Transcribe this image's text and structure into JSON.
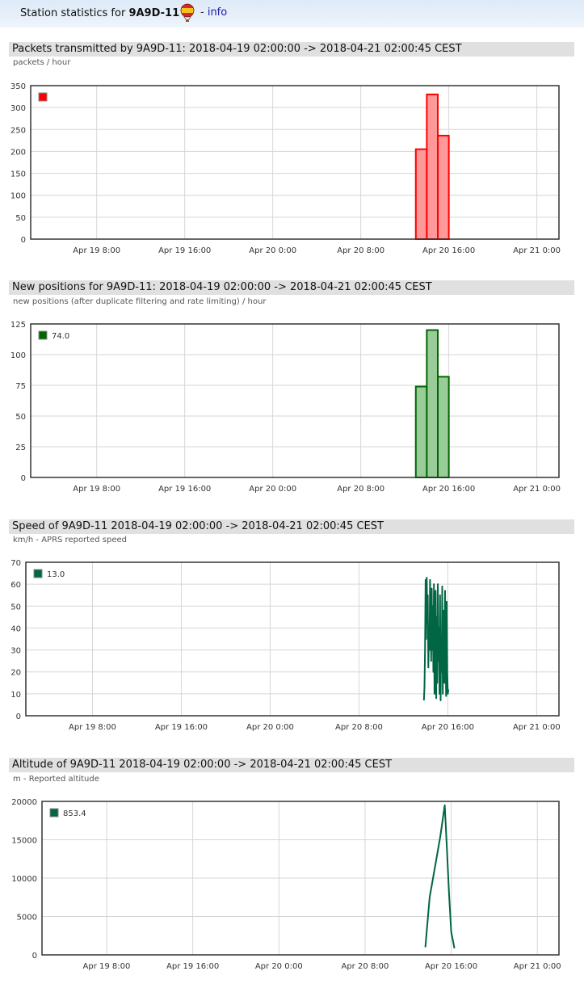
{
  "header": {
    "prefix": "Station statistics for",
    "callsign": "9A9D-11",
    "info_sep": " - ",
    "info_link": "info",
    "icon": "balloon-icon"
  },
  "chart_data": [
    {
      "type": "bar",
      "title": "Packets transmitted by 9A9D-11: 2018-04-19 02:00:00 -> 2018-04-21 02:00:45 CEST",
      "subtitle": "packets / hour",
      "color": "#ff0000",
      "fill": "#ff9999",
      "legend": "",
      "ylim": [
        0,
        350
      ],
      "yticks": [
        "0",
        "50",
        "100",
        "150",
        "200",
        "250",
        "300",
        "350"
      ],
      "xticks": [
        "Apr 19 8:00",
        "Apr 19 16:00",
        "Apr 20 0:00",
        "Apr 20 8:00",
        "Apr 20 16:00",
        "Apr 21 0:00"
      ],
      "xtick_hours": [
        6,
        14,
        22,
        30,
        38,
        46
      ],
      "xlim_hours": [
        0,
        48.01
      ],
      "bars": [
        {
          "start_hour": 35.0,
          "end_hour": 36.0,
          "value": 205
        },
        {
          "start_hour": 36.0,
          "end_hour": 37.0,
          "value": 330
        },
        {
          "start_hour": 37.0,
          "end_hour": 38.0,
          "value": 236
        }
      ],
      "legend_pos": "top-left"
    },
    {
      "type": "bar",
      "title": "New positions for 9A9D-11: 2018-04-19 02:00:00 -> 2018-04-21 02:00:45 CEST",
      "subtitle": "new positions (after duplicate filtering and rate limiting) / hour",
      "color": "#006600",
      "fill": "#99cc99",
      "legend": "74.0",
      "ylim": [
        0,
        125
      ],
      "yticks": [
        "0",
        "25",
        "50",
        "75",
        "100",
        "125"
      ],
      "xticks": [
        "Apr 19 8:00",
        "Apr 19 16:00",
        "Apr 20 0:00",
        "Apr 20 8:00",
        "Apr 20 16:00",
        "Apr 21 0:00"
      ],
      "xtick_hours": [
        6,
        14,
        22,
        30,
        38,
        46
      ],
      "xlim_hours": [
        0,
        48.01
      ],
      "bars": [
        {
          "start_hour": 35.0,
          "end_hour": 36.0,
          "value": 74
        },
        {
          "start_hour": 36.0,
          "end_hour": 37.0,
          "value": 120
        },
        {
          "start_hour": 37.0,
          "end_hour": 38.0,
          "value": 82
        }
      ],
      "legend_pos": "top-left"
    },
    {
      "type": "line",
      "title": "Speed of 9A9D-11 2018-04-19 02:00:00 -> 2018-04-21 02:00:45 CEST",
      "subtitle": "km/h - APRS reported speed",
      "color": "#006644",
      "legend": "13.0",
      "ylim": [
        0,
        70
      ],
      "yticks": [
        "0",
        "10",
        "20",
        "30",
        "40",
        "50",
        "60",
        "70"
      ],
      "xticks": [
        "Apr 19 8:00",
        "Apr 19 16:00",
        "Apr 20 0:00",
        "Apr 20 8:00",
        "Apr 20 16:00",
        "Apr 21 0:00"
      ],
      "xtick_hours": [
        6,
        14,
        22,
        30,
        38,
        46
      ],
      "xlim_hours": [
        0,
        48.01
      ],
      "x_hours": [
        35.85,
        35.9,
        35.95,
        36.0,
        36.05,
        36.1,
        36.15,
        36.2,
        36.25,
        36.3,
        36.35,
        36.4,
        36.45,
        36.5,
        36.55,
        36.6,
        36.65,
        36.7,
        36.75,
        36.8,
        36.85,
        36.9,
        36.95,
        37.0,
        37.05,
        37.1,
        37.15,
        37.2,
        37.25,
        37.3,
        37.35,
        37.4,
        37.45,
        37.5,
        37.55,
        37.6,
        37.65,
        37.7,
        37.75,
        37.8,
        37.85,
        37.9,
        37.95,
        38.0,
        38.05
      ],
      "values": [
        7,
        13,
        30,
        62,
        35,
        63,
        42,
        55,
        22,
        40,
        30,
        62,
        45,
        25,
        58,
        30,
        50,
        20,
        60,
        10,
        35,
        57,
        8,
        45,
        15,
        60,
        25,
        40,
        10,
        55,
        7,
        35,
        20,
        59,
        10,
        40,
        48,
        15,
        57,
        30,
        9,
        52,
        20,
        10,
        12
      ],
      "legend_pos": "top-left"
    },
    {
      "type": "line",
      "title": "Altitude of 9A9D-11 2018-04-19 02:00:00 -> 2018-04-21 02:00:45 CEST",
      "subtitle": "m - Reported altitude",
      "color": "#006644",
      "legend": "853.4",
      "ylim": [
        0,
        20000
      ],
      "yticks": [
        "0",
        "5000",
        "10000",
        "15000",
        "20000"
      ],
      "xticks": [
        "Apr 19 8:00",
        "Apr 19 16:00",
        "Apr 20 0:00",
        "Apr 20 8:00",
        "Apr 20 16:00",
        "Apr 21 0:00"
      ],
      "xtick_hours": [
        6,
        14,
        22,
        30,
        38,
        46
      ],
      "xlim_hours": [
        0,
        48.01
      ],
      "x_hours": [
        35.6,
        36.0,
        36.5,
        37.0,
        37.2,
        37.4,
        37.6,
        37.8,
        38.0,
        38.3
      ],
      "values": [
        1000,
        7500,
        11500,
        15500,
        17500,
        19500,
        14000,
        8000,
        3000,
        853.4
      ],
      "legend_pos": "top-left"
    }
  ]
}
